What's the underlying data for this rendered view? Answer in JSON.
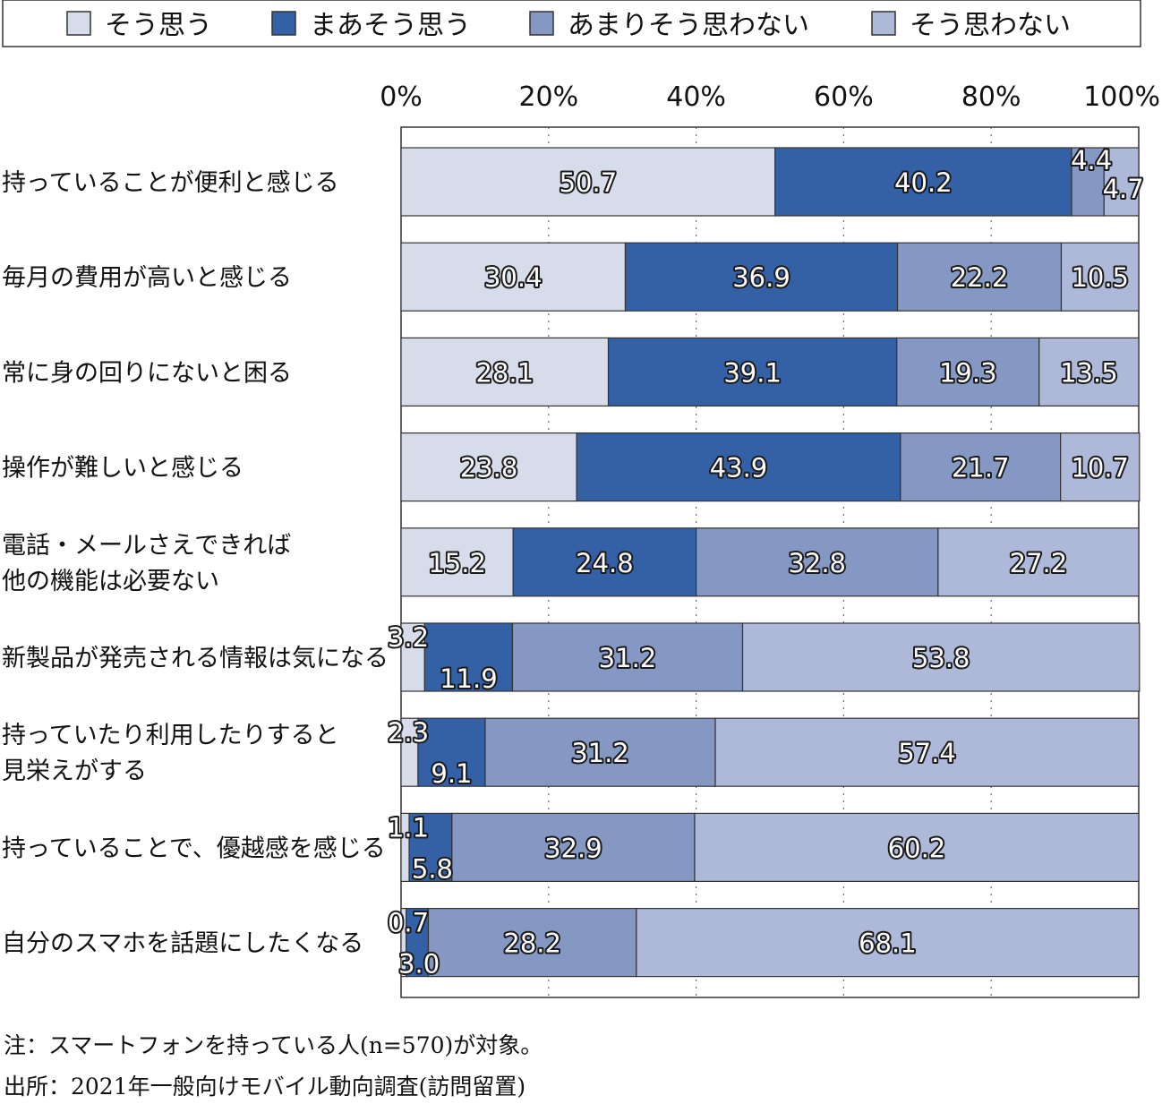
{
  "colors": {
    "s1": "#d6dcea",
    "s2": "#3461a6",
    "s3": "#8598c4",
    "s4": "#aeb9d9",
    "border": "#333333"
  },
  "chart_data": {
    "type": "bar",
    "orientation": "horizontal",
    "stacked": true,
    "legend_position": "top",
    "xlim": [
      0,
      100
    ],
    "x_ticks": [
      "0%",
      "20%",
      "40%",
      "60%",
      "80%",
      "100%"
    ],
    "grid": "dotted vertical",
    "series": [
      {
        "name": "そう思う",
        "color": "#d6dcea"
      },
      {
        "name": "まあそう思う",
        "color": "#3461a6"
      },
      {
        "name": "あまりそう思わない",
        "color": "#8598c4"
      },
      {
        "name": "そう思わない",
        "color": "#aeb9d9"
      }
    ],
    "categories": [
      {
        "lines": [
          "持っていることが便利と感じる"
        ],
        "values": [
          50.7,
          40.2,
          4.4,
          4.7
        ],
        "labels": [
          "50.7",
          "40.2",
          "4.4",
          "4.7"
        ]
      },
      {
        "lines": [
          "毎月の費用が高いと感じる"
        ],
        "values": [
          30.4,
          36.9,
          22.2,
          10.5
        ],
        "labels": [
          "30.4",
          "36.9",
          "22.2",
          "10.5"
        ]
      },
      {
        "lines": [
          "常に身の回りにないと困る"
        ],
        "values": [
          28.1,
          39.1,
          19.3,
          13.5
        ],
        "labels": [
          "28.1",
          "39.1",
          "19.3",
          "13.5"
        ]
      },
      {
        "lines": [
          "操作が難しいと感じる"
        ],
        "values": [
          23.8,
          43.9,
          21.7,
          10.7
        ],
        "labels": [
          "23.8",
          "43.9",
          "21.7",
          "10.7"
        ]
      },
      {
        "lines": [
          "電話・メールさえできれば",
          "他の機能は必要ない"
        ],
        "values": [
          15.2,
          24.8,
          32.8,
          27.2
        ],
        "labels": [
          "15.2",
          "24.8",
          "32.8",
          "27.2"
        ]
      },
      {
        "lines": [
          "新製品が発売される情報は気になる"
        ],
        "values": [
          3.2,
          11.9,
          31.2,
          53.8
        ],
        "labels": [
          "3.2",
          "11.9",
          "31.2",
          "53.8"
        ]
      },
      {
        "lines": [
          "持っていたり利用したりすると",
          "見栄えがする"
        ],
        "values": [
          2.3,
          9.1,
          31.2,
          57.4
        ],
        "labels": [
          "2.3",
          "9.1",
          "31.2",
          "57.4"
        ]
      },
      {
        "lines": [
          "持っていることで、優越感を感じる"
        ],
        "values": [
          1.1,
          5.8,
          32.9,
          60.2
        ],
        "labels": [
          "1.1",
          "5.8",
          "32.9",
          "60.2"
        ]
      },
      {
        "lines": [
          "自分のスマホを話題にしたくなる"
        ],
        "values": [
          0.7,
          3.0,
          28.2,
          68.1
        ],
        "labels": [
          "0.7",
          "3.0",
          "28.2",
          "68.1"
        ]
      }
    ]
  },
  "notes": {
    "note": "注：スマートフォンを持っている人(n=570)が対象。",
    "source": "出所：2021年一般向けモバイル動向調査(訪問留置)"
  }
}
